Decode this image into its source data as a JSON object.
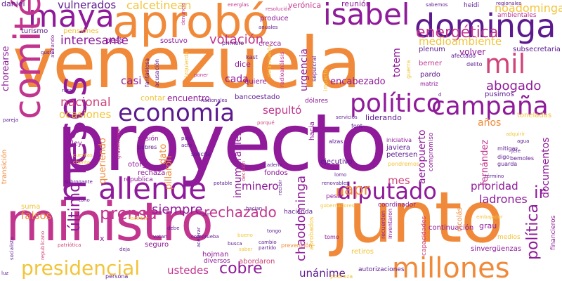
{
  "colors": {
    "background": "#ffffff",
    "purple": "#8f1a9a",
    "deep_purple": "#5c1a8f",
    "orange": "#f08a3a",
    "pink": "#d0457a",
    "magenta": "#c2358f",
    "yellow": "#f2c43a",
    "light_orange": "#f6a25e"
  },
  "words": {
    "venezuela": "venezuela",
    "proyecto": "proyecto",
    "ministro": "ministro",
    "junto": "junto",
    "aprobo": "aprobó",
    "dominga": "dominga",
    "maya": "maya",
    "isabel": "isabel",
    "comite": "comité",
    "meses": "meses",
    "allende": "allende",
    "economia": "economía",
    "politico": "político",
    "campana": "campaña",
    "diputado": "diputado",
    "millones": "millones",
    "mil": "mil",
    "energetica": "energética",
    "presidencial": "presidencial",
    "cobre": "cobre",
    "prensa": "prensa",
    "abogado": "abogado",
    "nacional": "nacional",
    "apr": "apr",
    "ir": "ir",
    "politica": "política",
    "ultimo": "último",
    "rechazado": "rechazado",
    "siempre": "siempre",
    "votacion": "votación",
    "interesante": "interesante",
    "vulnerados": "vulnerados",
    "calcetinean": "calcetinean",
    "noadominga": "noadominga",
    "medioambiente": "medioambiente",
    "chaodominga": "chaodominga",
    "sepulto": "sepultó",
    "ocasiones": "ocasiones",
    "casi": "casi",
    "cada": "cada",
    "minero": "minero",
    "prioridad": "prioridad",
    "ladrones": "ladrones",
    "unanime": "unánime",
    "ustedes": "ustedes",
    "falsos": "falsos",
    "suma": "suma",
    "mes": "mes",
    "encabezado": "encabezado",
    "urgencia": "urgencia",
    "totem": "totem",
    "aeropuerto": "aeropuerto",
    "inmensas": "innumerables",
    "pillaron": "pillaron",
    "queriendo": "queriendo",
    "dato": "dato",
    "anos": "años",
    "fernandez": "fernández",
    "documentos": "documentos",
    "bancoestado": "bancoestado",
    "liderando": "liderando",
    "dolares": "dólares",
    "encuentro": "encuentro",
    "contar": "contar",
    "reunion": "reunión",
    "veronica": "verónica",
    "volver": "volver",
    "subsecretaria": "subsecretaria",
    "plenum": "plenum",
    "berner": "berner",
    "pardo": "pardo",
    "quiere": "quiere",
    "dice": "dice",
    "crezca": "crezca",
    "produce": "produce",
    "peso": "peso",
    "sostuvo": "sostuvo",
    "daniel": "daniel",
    "turismo": "turismo",
    "pensiones": "pensiones",
    "choriarse": "chorearse",
    "heidi": "heidi",
    "pusimos": "pusimos",
    "toneladas": "toneladas",
    "fondos": "fondos",
    "rechaza": "rechaza",
    "otorga": "otorga",
    "hojman": "hojman",
    "seguro": "seguro",
    "diversos": "diversos",
    "abordaron": "abordaron",
    "coordinador": "coordinador",
    "continuacion": "continuación",
    "nicolas": "nicolás",
    "grau": "grau",
    "sinverguenzas": "sinvergüenzas",
    "pesar": "pesar",
    "ejecutivo": "ejecutivo",
    "javiera": "javiera",
    "petersen": "petersen",
    "hacia": "hacia",
    "transicion": "transición",
    "ley": "ley",
    "mision": "misión",
    "republica": "republica",
    "x": "x",
    "mitigar": "mitigar",
    "financieros": "financieros",
    "recuerden": "recuerden",
    "inventaron": "inventaron",
    "autorizaciones": "autorizaciones",
    "capacidades": "capacidades",
    "persona": "persona",
    "pobreza": "pobreza",
    "aprobados": "aprobados",
    "retiros": "retiros",
    "prevencion": "prevención",
    "adquirir": "adquirir",
    "agua": "agua",
    "medios": "medios",
    "tomo": "tomo",
    "iniciativa": "iniciativa",
    "compromiso": "compromiso",
    "ponderemos": "pondremos",
    "fantasiosa": "fantasiosa",
    "acusacion": "acusación",
    "izquierda": "izquierda",
    "primero": "primero",
    "kast": "kast",
    "delincuente": "delincuente",
    "radioanalisis": "radioanálisis",
    "sepulcral": "sepulcral",
    "impacto": "impacto",
    "guerra": "guerra",
    "matriz": "matriz",
    "digo": "digo",
    "afectado": "afectado",
    "delito": "delito",
    "regionales": "regionales",
    "ambientales": "ambientales",
    "sabemos": "sabemos",
    "resolucion": "resolución",
    "energias": "energías",
    "denuncia": "denuncia",
    "anuales": "anuales",
    "gusta": "gusta",
    "avalando": "avalando",
    "rural": "rural",
    "pareja": "pareja",
    "nacionales": "nacionales",
    "servicios": "servicios",
    "font": "font",
    "alzas": "alzas",
    "polo": "polo",
    "acto": "acto",
    "pobres": "pobres",
    "solicita": "solicita",
    "cadena": "cadena",
    "potable": "potable",
    "renovables": "renovables",
    "lomo": "lomo",
    "hacienda": "hacienda",
    "hacian": "hacian",
    "debe": "debe",
    "tongo": "tongo",
    "votan": "votan",
    "comprueba": "comprueba",
    "acelerar": "acelerar",
    "busca": "busca",
    "partido": "partido",
    "cambio": "cambio",
    "deja": "deja",
    "socialista": "socialista",
    "republicano": "republicano",
    "patriotica": "patriótica",
    "cuentas": "cuentas",
    "chanta": "chanta",
    "subrogante": "subrogante",
    "gravemente": "gravemente",
    "facilitar": "facilitar",
    "embajador": "embajador",
    "bemoles": "bemoles",
    "termino": "término",
    "jefe": "jefe",
    "guarda": "guarda",
    "sur": "sur",
    "luz": "luz",
    "saber": "saber",
    "bueno": "bueno",
    "tono": "tono",
    "porque": "porqué",
    "gobernadores": "gobernadores",
    "decision": "decisión",
    "recibir": "recibir",
    "poner": "poner",
    "d": "d"
  }
}
